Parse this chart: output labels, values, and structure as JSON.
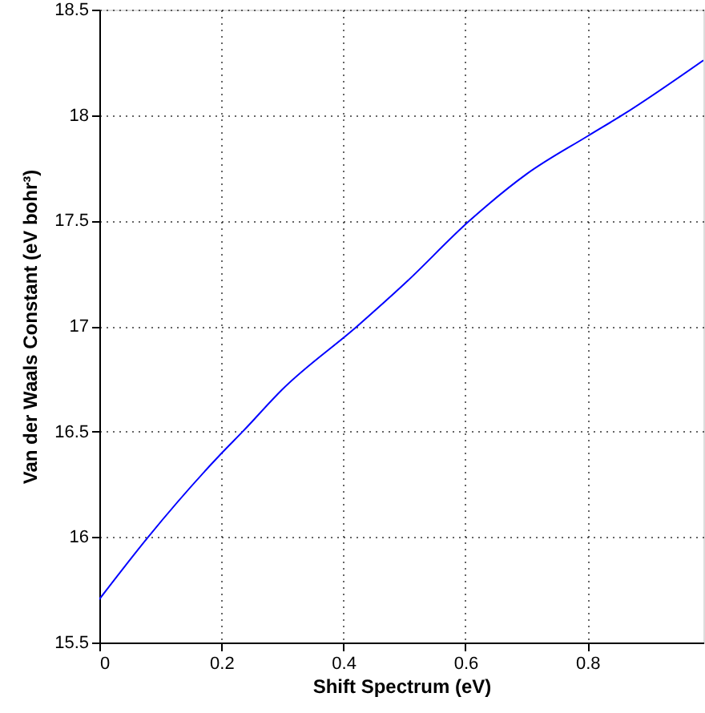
{
  "chart_data": {
    "type": "line",
    "xlabel": "Shift Spectrum (eV)",
    "ylabel": "Van der Waals Constant (eV bohr³)",
    "x": [
      0,
      0.08,
      0.2,
      0.235,
      0.3,
      0.423,
      0.5,
      0.607,
      0.7,
      0.8,
      0.857,
      0.99
    ],
    "series": [
      {
        "color": "#0000ff",
        "values": [
          15.705,
          16.0,
          16.396,
          16.5,
          16.7,
          17.0,
          17.2,
          17.5,
          17.72,
          17.9,
          18.0,
          18.26
        ]
      }
    ],
    "xlim": [
      0,
      0.99
    ],
    "xticks": [
      0,
      0.2,
      0.4,
      0.6,
      0.8
    ],
    "ylim": [
      15.5,
      18.5
    ],
    "yticks": [
      15.5,
      16,
      16.5,
      17,
      17.5,
      18,
      18.5
    ],
    "grid": true,
    "marker": "none",
    "line_style": "solid"
  }
}
